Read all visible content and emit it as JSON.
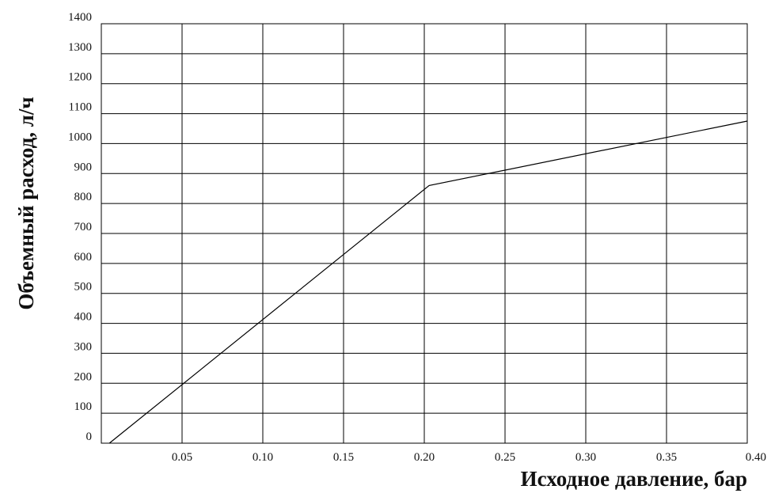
{
  "chart_data": {
    "type": "line",
    "title": "",
    "xlabel": "Исходное давление, бар",
    "ylabel": "Объемный расход, л/ч",
    "xlim": [
      0,
      0.4
    ],
    "ylim": [
      0,
      1400
    ],
    "x_ticks": [
      "0.05",
      "0.10",
      "0.15",
      "0.20",
      "0.25",
      "0.30",
      "0.35",
      "0.40"
    ],
    "x_tick_values": [
      0.05,
      0.1,
      0.15,
      0.2,
      0.25,
      0.3,
      0.35,
      0.4
    ],
    "y_ticks": [
      "0",
      "100",
      "200",
      "300",
      "400",
      "500",
      "600",
      "700",
      "800",
      "900",
      "1000",
      "1100",
      "1200",
      "1300",
      "1400"
    ],
    "y_tick_values": [
      0,
      100,
      200,
      300,
      400,
      500,
      600,
      700,
      800,
      900,
      1000,
      1100,
      1200,
      1300,
      1400
    ],
    "grid": true,
    "legend": "none",
    "line_color": "#000000",
    "grid_color": "#000000",
    "series": [
      {
        "x": [
          0.005,
          0.203,
          0.4
        ],
        "y": [
          0,
          860,
          1075
        ]
      }
    ]
  }
}
